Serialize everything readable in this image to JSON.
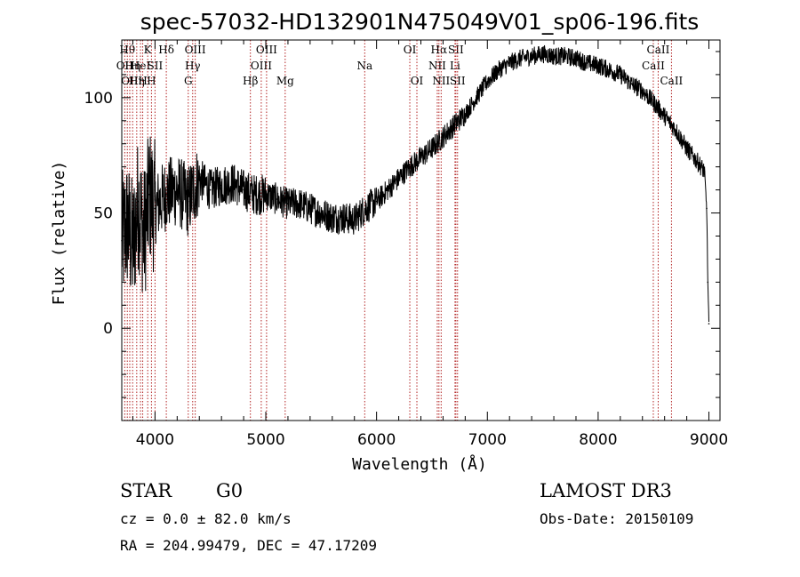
{
  "chart_data": {
    "type": "line",
    "title": "spec-57032-HD132901N475049V01_sp06-196.fits",
    "xlabel": "Wavelength (Å)",
    "ylabel": "Flux (relative)",
    "xlim": [
      3700,
      9100
    ],
    "ylim": [
      -40,
      125
    ],
    "x_ticks": [
      4000,
      5000,
      6000,
      7000,
      8000,
      9000
    ],
    "y_ticks": [
      0,
      50,
      100
    ],
    "x_tick_labels": [
      "4000",
      "5000",
      "6000",
      "7000",
      "8000",
      "9000"
    ],
    "y_tick_labels": [
      "0",
      "50",
      "100"
    ],
    "grid": false,
    "series": [
      {
        "name": "flux",
        "x": [
          3700,
          3750,
          3800,
          3850,
          3900,
          3950,
          4000,
          4100,
          4200,
          4300,
          4400,
          4500,
          4600,
          4700,
          4800,
          4900,
          5000,
          5100,
          5200,
          5300,
          5400,
          5500,
          5600,
          5700,
          5800,
          5900,
          6000,
          6100,
          6200,
          6300,
          6400,
          6500,
          6600,
          6700,
          6800,
          6900,
          7000,
          7100,
          7200,
          7300,
          7400,
          7500,
          7600,
          7700,
          7800,
          7900,
          8000,
          8100,
          8200,
          8300,
          8400,
          8500,
          8600,
          8700,
          8800,
          8900,
          8960,
          8980,
          8990,
          9000
        ],
        "y": [
          38,
          45,
          35,
          55,
          40,
          58,
          52,
          58,
          60,
          55,
          65,
          60,
          62,
          63,
          60,
          58,
          58,
          56,
          54,
          54,
          52,
          50,
          48,
          48,
          47,
          52,
          55,
          60,
          65,
          70,
          74,
          78,
          83,
          88,
          93,
          100,
          107,
          112,
          115,
          117,
          118,
          119,
          118,
          118,
          117,
          115,
          114,
          112,
          110,
          106,
          103,
          98,
          92,
          86,
          78,
          72,
          68,
          52,
          20,
          2
        ]
      }
    ],
    "line_markers": [
      {
        "w": 3727,
        "label": "OII",
        "row": 1
      },
      {
        "w": 3750,
        "label": "Hθ",
        "row": 0
      },
      {
        "w": 3772,
        "label": "OII",
        "row": 2
      },
      {
        "w": 3798,
        "label": "Hη",
        "row": 1
      },
      {
        "w": 3835,
        "label": "Hη",
        "row": 2
      },
      {
        "w": 3869,
        "label": "HeI",
        "row": 1
      },
      {
        "w": 3889,
        "label": "H",
        "row": 2
      },
      {
        "w": 3934,
        "label": "K",
        "row": 0
      },
      {
        "w": 3968,
        "label": "H",
        "row": 2
      },
      {
        "w": 4000,
        "label": "SII",
        "row": 1
      },
      {
        "w": 4102,
        "label": "Hδ",
        "row": 0
      },
      {
        "w": 4300,
        "label": "G",
        "row": 2
      },
      {
        "w": 4340,
        "label": "Hγ",
        "row": 1
      },
      {
        "w": 4363,
        "label": "OIII",
        "row": 0
      },
      {
        "w": 4861,
        "label": "Hβ",
        "row": 2
      },
      {
        "w": 4959,
        "label": "OIII",
        "row": 1
      },
      {
        "w": 5007,
        "label": "OIII",
        "row": 0
      },
      {
        "w": 5175,
        "label": "Mg",
        "row": 2
      },
      {
        "w": 5893,
        "label": "Na",
        "row": 1
      },
      {
        "w": 6300,
        "label": "OI",
        "row": 0
      },
      {
        "w": 6364,
        "label": "OI",
        "row": 2
      },
      {
        "w": 6548,
        "label": "NII",
        "row": 1
      },
      {
        "w": 6563,
        "label": "Hα",
        "row": 0
      },
      {
        "w": 6583,
        "label": "NII",
        "row": 2
      },
      {
        "w": 6708,
        "label": "Li",
        "row": 1
      },
      {
        "w": 6716,
        "label": "SII",
        "row": 0
      },
      {
        "w": 6731,
        "label": "SII",
        "row": 2
      },
      {
        "w": 8498,
        "label": "CaII",
        "row": 1
      },
      {
        "w": 8542,
        "label": "CaII",
        "row": 0
      },
      {
        "w": 8662,
        "label": "CaII",
        "row": 2
      }
    ]
  },
  "info": {
    "object_class": "STAR",
    "subclass": "G0",
    "survey": "LAMOST DR3",
    "cz": "cz = 0.0 ± 82.0 km/s",
    "obs_date": "Obs-Date: 20150109",
    "coords": "RA = 204.99479, DEC =  47.17209"
  },
  "colors": {
    "axis": "#000000",
    "spectrum": "#000000",
    "marker": "#b22222"
  }
}
